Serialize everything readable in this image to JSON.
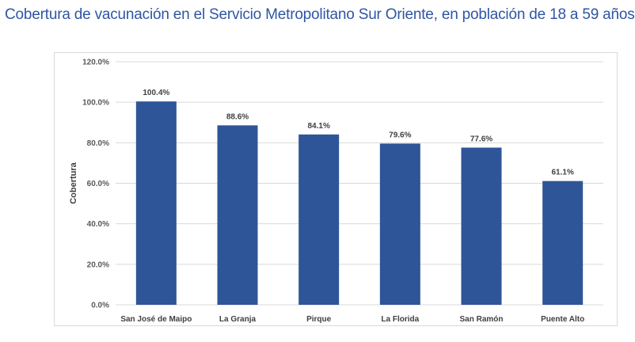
{
  "title": "Cobertura de vacunación en el Servicio Metropolitano Sur Oriente, en población de 18 a 59 años.",
  "colors": {
    "bar": "#2e5597",
    "title": "#2f56a3",
    "grid": "#d9d9d9"
  },
  "chart_data": {
    "type": "bar",
    "title": "",
    "xlabel": "",
    "ylabel": "Cobertura",
    "categories": [
      "San José de Maipo",
      "La Granja",
      "Pirque",
      "La Florida",
      "San Ramón",
      "Puente Alto"
    ],
    "values": [
      100.4,
      88.6,
      84.1,
      79.6,
      77.6,
      61.1
    ],
    "data_labels": [
      "100.4%",
      "88.6%",
      "84.1%",
      "79.6%",
      "77.6%",
      "61.1%"
    ],
    "ylim": [
      0,
      120
    ],
    "yticks": [
      0,
      20,
      40,
      60,
      80,
      100,
      120
    ],
    "ytick_labels": [
      "0.0%",
      "20.0%",
      "40.0%",
      "60.0%",
      "80.0%",
      "100.0%",
      "120.0%"
    ],
    "grid": true,
    "legend": "none"
  }
}
